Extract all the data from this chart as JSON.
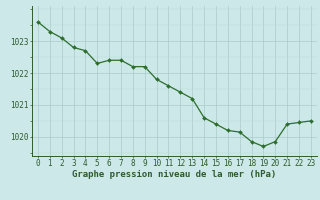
{
  "x": [
    0,
    1,
    2,
    3,
    4,
    5,
    6,
    7,
    8,
    9,
    10,
    11,
    12,
    13,
    14,
    15,
    16,
    17,
    18,
    19,
    20,
    21,
    22,
    23
  ],
  "y": [
    1023.6,
    1023.3,
    1023.1,
    1022.8,
    1022.7,
    1022.3,
    1022.4,
    1022.4,
    1022.2,
    1022.2,
    1021.8,
    1021.6,
    1021.4,
    1021.2,
    1020.6,
    1020.4,
    1020.2,
    1020.15,
    1019.85,
    1019.7,
    1019.85,
    1020.4,
    1020.45,
    1020.5
  ],
  "line_color": "#2d6e2d",
  "marker_color": "#2d6e2d",
  "bg_color": "#cce8e8",
  "grid_color_major": "#aacccc",
  "grid_color_minor": "#bbdddd",
  "xlabel": "Graphe pression niveau de la mer (hPa)",
  "xlabel_color": "#2d5c2d",
  "tick_color": "#2d5c2d",
  "axis_color": "#2d5c2d",
  "ylim": [
    1019.4,
    1024.1
  ],
  "yticks": [
    1020,
    1021,
    1022,
    1023
  ],
  "xticks": [
    0,
    1,
    2,
    3,
    4,
    5,
    6,
    7,
    8,
    9,
    10,
    11,
    12,
    13,
    14,
    15,
    16,
    17,
    18,
    19,
    20,
    21,
    22,
    23
  ],
  "tick_fontsize": 5.5,
  "xlabel_fontsize": 6.5
}
